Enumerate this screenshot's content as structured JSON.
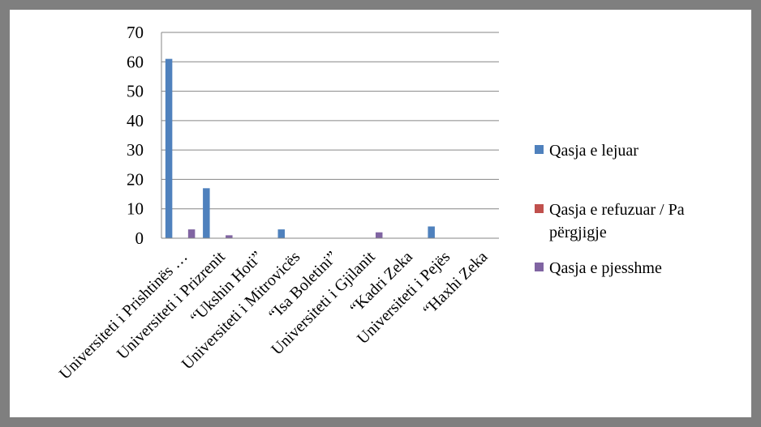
{
  "chart_data": {
    "type": "bar",
    "title": "",
    "xlabel": "",
    "ylabel": "",
    "ylim": [
      0,
      70
    ],
    "yticks": [
      0,
      10,
      20,
      30,
      40,
      50,
      60,
      70
    ],
    "grid": true,
    "legend_position": "right",
    "categories": [
      "Universiteti i Prishtinës …",
      "Universiteti i Prizrenit",
      "“Ukshin Hoti”",
      "Universiteti i Mitrovicës",
      "“Isa Boletini”",
      "Universiteti i Gjilanit",
      "“Kadri Zeka",
      "Universiteti i Pejës",
      "“Haxhi Zeka"
    ],
    "series": [
      {
        "name": "Qasja e lejuar",
        "color": "#4f81bd",
        "values": [
          61,
          17,
          0,
          3,
          0,
          0,
          0,
          4,
          0
        ]
      },
      {
        "name": "Qasja e refuzuar / Pa përgjigje",
        "color": "#c0504d",
        "values": [
          0,
          0,
          0,
          0,
          0,
          0,
          0,
          0,
          0
        ]
      },
      {
        "name": "Qasja e pjesshme",
        "color": "#8064a2",
        "values": [
          3,
          1,
          0,
          0,
          0,
          2,
          0,
          0,
          0
        ]
      }
    ]
  }
}
